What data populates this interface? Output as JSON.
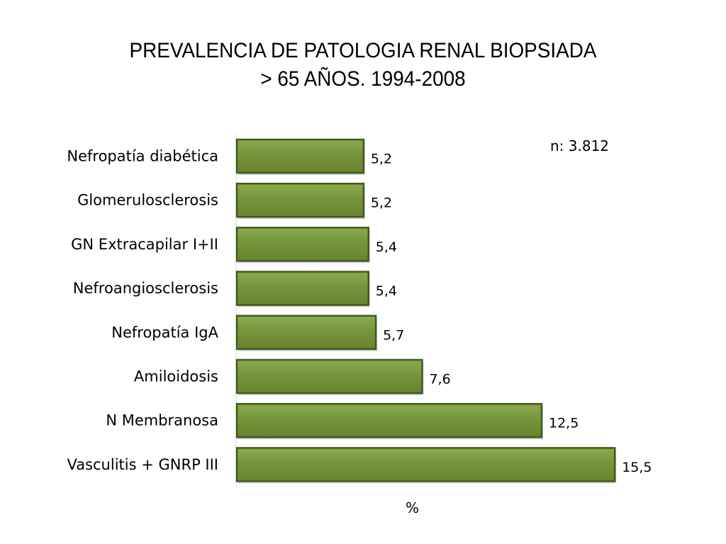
{
  "chart_data": {
    "type": "bar",
    "orientation": "horizontal",
    "title": [
      "PREVALENCIA DE PATOLOGIA RENAL BIOPSIADA",
      "> 65 AÑOS. 1994-2008"
    ],
    "annotation": "n: 3.812",
    "xlabel": "%",
    "categories": [
      "Nefropatía diabética",
      "Glomerulosclerosis",
      "GN Extracapilar  I+II",
      "Nefroangiosclerosis",
      "Nefropatía  IgA",
      "Amiloidosis",
      "N  Membranosa",
      "Vasculitis + GNRP III"
    ],
    "values": [
      5.2,
      5.2,
      5.4,
      5.4,
      5.7,
      7.6,
      12.5,
      15.5
    ],
    "value_labels": [
      "5,2",
      "5,2",
      "5,4",
      "5,4",
      "5,7",
      "7,6",
      "12,5",
      "15,5"
    ],
    "bar_color": "#76933c",
    "bar_border_color": "#3f5a1e",
    "grid": false,
    "legend": "none"
  }
}
